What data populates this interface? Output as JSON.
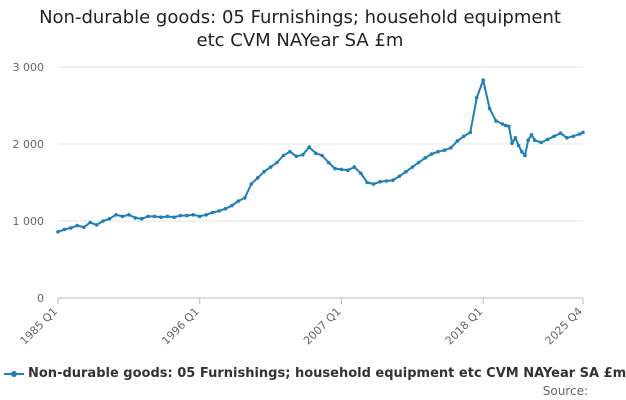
{
  "title_line1": "Non-durable goods: 05 Furnishings; household equipment",
  "title_line2": "etc CVM NAYear SA £m",
  "legend_label": "Non-durable goods: 05 Furnishings; household equipment etc CVM NAYear SA £m",
  "source_label": "Source:",
  "series_color": "#1f7fb6",
  "chart_data": {
    "type": "line",
    "title": "Non-durable goods: 05 Furnishings; household equipment etc CVM NAYear SA £m",
    "xlabel": "",
    "ylabel": "",
    "ylim": [
      0,
      3000
    ],
    "y_ticks": [
      0,
      1000,
      2000,
      3000
    ],
    "y_tick_labels": [
      "0",
      "1 000",
      "2 000",
      "3 000"
    ],
    "x_tick_labels": [
      "1985 Q1",
      "1996 Q1",
      "2007 Q1",
      "2018 Q1",
      "2025 Q4"
    ],
    "grid": "horizontal",
    "legend": "bottom",
    "series": [
      {
        "name": "Non-durable goods: 05 Furnishings; household equipment etc CVM NAYear SA £m",
        "x": [
          "1985 Q1",
          "1985 Q3",
          "1986 Q1",
          "1986 Q3",
          "1987 Q1",
          "1987 Q3",
          "1988 Q1",
          "1988 Q3",
          "1989 Q1",
          "1989 Q3",
          "1990 Q1",
          "1990 Q3",
          "1991 Q1",
          "1991 Q3",
          "1992 Q1",
          "1992 Q3",
          "1993 Q1",
          "1993 Q3",
          "1994 Q1",
          "1994 Q3",
          "1995 Q1",
          "1995 Q3",
          "1996 Q1",
          "1996 Q3",
          "1997 Q1",
          "1997 Q3",
          "1998 Q1",
          "1998 Q3",
          "1999 Q1",
          "1999 Q3",
          "2000 Q1",
          "2000 Q3",
          "2001 Q1",
          "2001 Q3",
          "2002 Q1",
          "2002 Q3",
          "2003 Q1",
          "2003 Q3",
          "2004 Q1",
          "2004 Q3",
          "2005 Q1",
          "2005 Q3",
          "2006 Q1",
          "2006 Q3",
          "2007 Q1",
          "2007 Q3",
          "2008 Q1",
          "2008 Q3",
          "2009 Q1",
          "2009 Q3",
          "2010 Q1",
          "2010 Q3",
          "2011 Q1",
          "2011 Q3",
          "2012 Q1",
          "2012 Q3",
          "2013 Q1",
          "2013 Q3",
          "2014 Q1",
          "2014 Q3",
          "2015 Q1",
          "2015 Q3",
          "2016 Q1",
          "2016 Q3",
          "2017 Q1",
          "2017 Q3",
          "2018 Q1",
          "2018 Q3",
          "2019 Q1",
          "2019 Q3",
          "2019 Q4",
          "2020 Q1",
          "2020 Q2",
          "2020 Q3",
          "2020 Q4",
          "2021 Q1",
          "2021 Q2",
          "2021 Q3",
          "2021 Q4",
          "2022 Q1",
          "2022 Q3",
          "2023 Q1",
          "2023 Q3",
          "2024 Q1",
          "2024 Q3",
          "2025 Q1",
          "2025 Q3",
          "2025 Q4"
        ],
        "values": [
          860,
          890,
          910,
          940,
          920,
          980,
          950,
          1000,
          1030,
          1080,
          1060,
          1080,
          1040,
          1030,
          1060,
          1060,
          1050,
          1060,
          1050,
          1070,
          1070,
          1080,
          1060,
          1080,
          1110,
          1130,
          1160,
          1200,
          1260,
          1300,
          1480,
          1560,
          1640,
          1700,
          1760,
          1850,
          1900,
          1840,
          1860,
          1960,
          1880,
          1850,
          1760,
          1680,
          1670,
          1660,
          1700,
          1620,
          1500,
          1480,
          1510,
          1520,
          1530,
          1580,
          1640,
          1700,
          1760,
          1820,
          1870,
          1900,
          1920,
          1950,
          2040,
          2100,
          2150,
          2600,
          2830,
          2460,
          2300,
          2260,
          2240,
          2230,
          2010,
          2080,
          1980,
          1900,
          1850,
          2050,
          2120,
          2050,
          2020,
          2060,
          2100,
          2140,
          2080,
          2100,
          2130,
          2150
        ]
      }
    ]
  }
}
